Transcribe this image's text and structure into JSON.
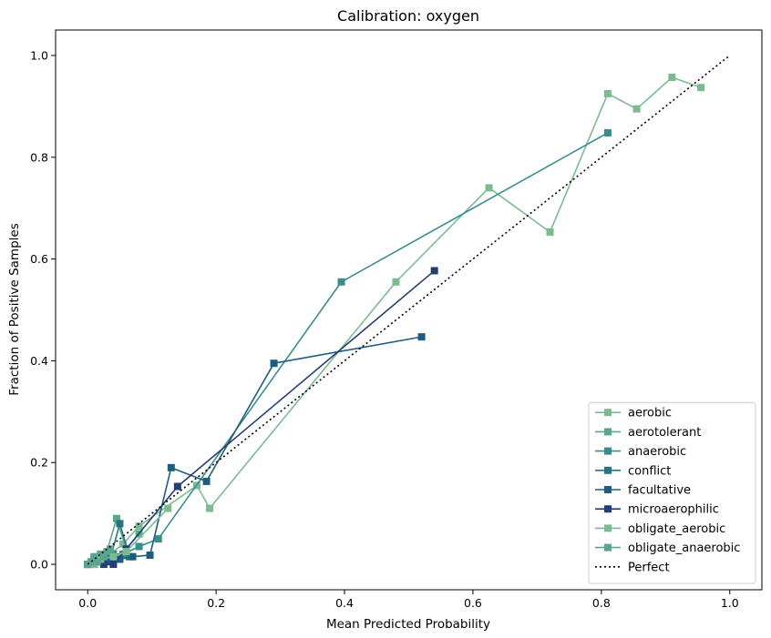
{
  "chart_data": {
    "type": "line",
    "title": "Calibration: oxygen",
    "xlabel": "Mean Predicted Probability",
    "ylabel": "Fraction of Positive Samples",
    "xlim": [
      -0.05,
      1.05
    ],
    "ylim": [
      -0.05,
      1.05
    ],
    "xticks": [
      0.0,
      0.2,
      0.4,
      0.6,
      0.8,
      1.0
    ],
    "yticks": [
      0.0,
      0.2,
      0.4,
      0.6,
      0.8,
      1.0
    ],
    "xtick_labels": [
      "0.0",
      "0.2",
      "0.4",
      "0.6",
      "0.8",
      "1.0"
    ],
    "ytick_labels": [
      "0.0",
      "0.2",
      "0.4",
      "0.6",
      "0.8",
      "1.0"
    ],
    "grid": false,
    "legend_position": "lower-right",
    "series": [
      {
        "name": "aerobic",
        "color": "#7dba91",
        "marker": "square",
        "x": [
          0.0,
          0.01,
          0.02,
          0.035,
          0.055,
          0.08,
          0.17,
          0.19,
          0.48,
          0.625,
          0.72,
          0.81,
          0.855,
          0.91,
          0.955
        ],
        "y": [
          0.0,
          0.005,
          0.01,
          0.02,
          0.04,
          0.075,
          0.155,
          0.11,
          0.555,
          0.74,
          0.653,
          0.925,
          0.895,
          0.957,
          0.937
        ]
      },
      {
        "name": "aerotolerant",
        "color": "#59a590",
        "marker": "square",
        "x": [
          0.0,
          0.01,
          0.02,
          0.03,
          0.045,
          0.06,
          0.08
        ],
        "y": [
          0.0,
          0.005,
          0.02,
          0.025,
          0.09,
          0.03,
          0.06
        ]
      },
      {
        "name": "anaerobic",
        "color": "#3a8d8d",
        "marker": "square",
        "x": [
          0.0,
          0.01,
          0.025,
          0.04,
          0.055,
          0.08,
          0.11,
          0.395,
          0.81
        ],
        "y": [
          0.0,
          0.01,
          0.015,
          0.02,
          0.02,
          0.035,
          0.05,
          0.555,
          0.848
        ]
      },
      {
        "name": "conflict",
        "color": "#257585",
        "marker": "square",
        "x": [
          0.0,
          0.01,
          0.02,
          0.035,
          0.05,
          0.065
        ],
        "y": [
          0.0,
          0.005,
          0.005,
          0.01,
          0.08,
          0.015
        ]
      },
      {
        "name": "facultative",
        "color": "#1d5e80",
        "marker": "square",
        "x": [
          0.0,
          0.01,
          0.03,
          0.05,
          0.07,
          0.097,
          0.13,
          0.185,
          0.29,
          0.52
        ],
        "y": [
          0.0,
          0.0,
          0.005,
          0.01,
          0.015,
          0.018,
          0.19,
          0.163,
          0.395,
          0.447
        ]
      },
      {
        "name": "microaerophilic",
        "color": "#243e73",
        "marker": "square",
        "x": [
          0.0,
          0.01,
          0.025,
          0.04,
          0.06,
          0.14,
          0.54
        ],
        "y": [
          0.0,
          0.0,
          0.0,
          0.0,
          0.03,
          0.153,
          0.577
        ]
      },
      {
        "name": "obligate_aerobic",
        "color": "#7dba91",
        "marker": "square",
        "x": [
          0.0,
          0.01,
          0.02,
          0.04,
          0.06,
          0.125
        ],
        "y": [
          0.0,
          0.0,
          0.01,
          0.015,
          0.025,
          0.11
        ]
      },
      {
        "name": "obligate_anaerobic",
        "color": "#59a590",
        "marker": "square",
        "x": [
          0.0,
          0.005,
          0.01,
          0.015,
          0.025,
          0.035
        ],
        "y": [
          0.0,
          0.005,
          0.015,
          0.005,
          0.015,
          0.03
        ]
      },
      {
        "name": "Perfect",
        "color": "#000000",
        "style": "dotted",
        "x": [
          0.0,
          1.0
        ],
        "y": [
          0.0,
          1.0
        ]
      }
    ]
  }
}
